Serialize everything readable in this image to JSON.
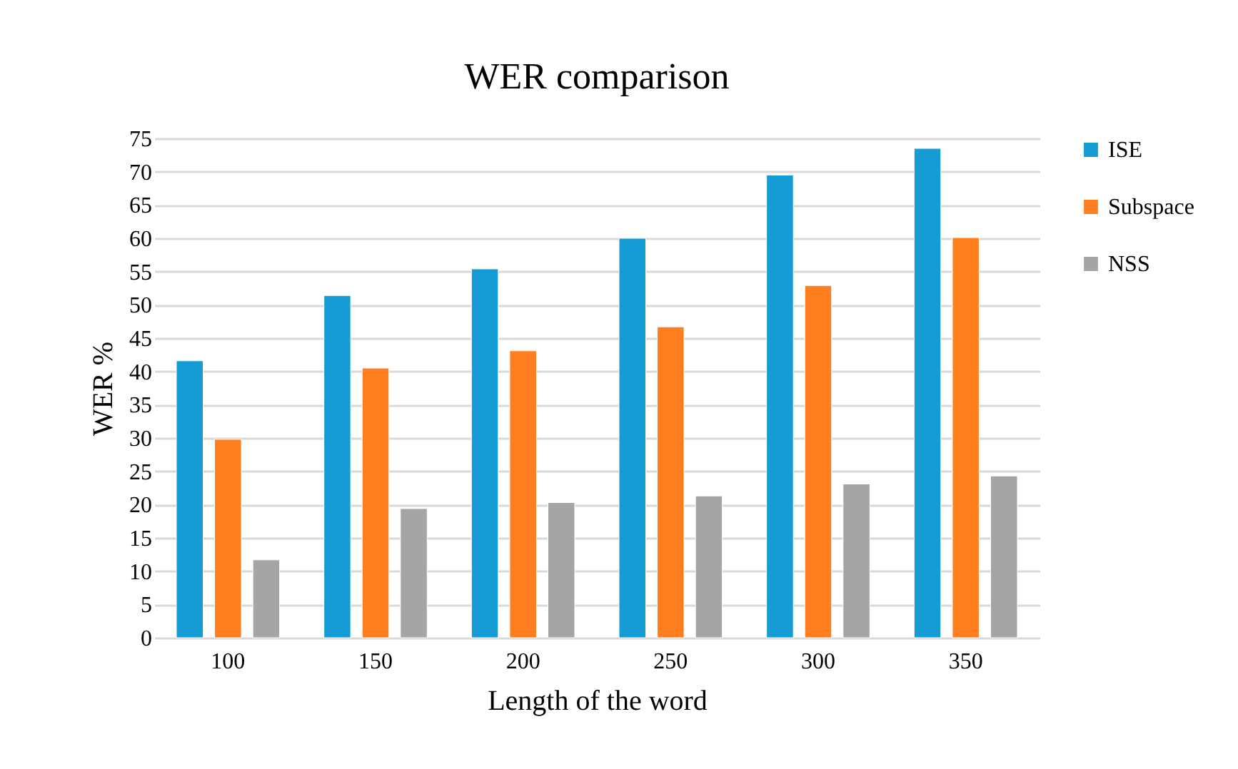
{
  "chart_data": {
    "type": "bar",
    "title": "WER comparison",
    "xlabel": "Length of the word",
    "ylabel": "WER %",
    "categories": [
      "100",
      "150",
      "200",
      "250",
      "300",
      "350"
    ],
    "series": [
      {
        "name": "ISE",
        "color": "#169bd5",
        "values": [
          41.6,
          51.4,
          55.4,
          60,
          69.5,
          73.5
        ]
      },
      {
        "name": "Subspace",
        "color": "#ff7f20",
        "values": [
          29.8,
          40.5,
          43.1,
          46.7,
          52.9,
          60.1
        ]
      },
      {
        "name": "NSS",
        "color": "#a5a5a5",
        "values": [
          11.7,
          19.4,
          20.3,
          21.3,
          23.1,
          24.3
        ]
      }
    ],
    "ylim": [
      0,
      75
    ],
    "yticks": [
      0,
      5,
      10,
      15,
      20,
      25,
      30,
      35,
      40,
      45,
      50,
      55,
      60,
      65,
      70,
      75
    ],
    "grid": "y",
    "legend": "right"
  }
}
